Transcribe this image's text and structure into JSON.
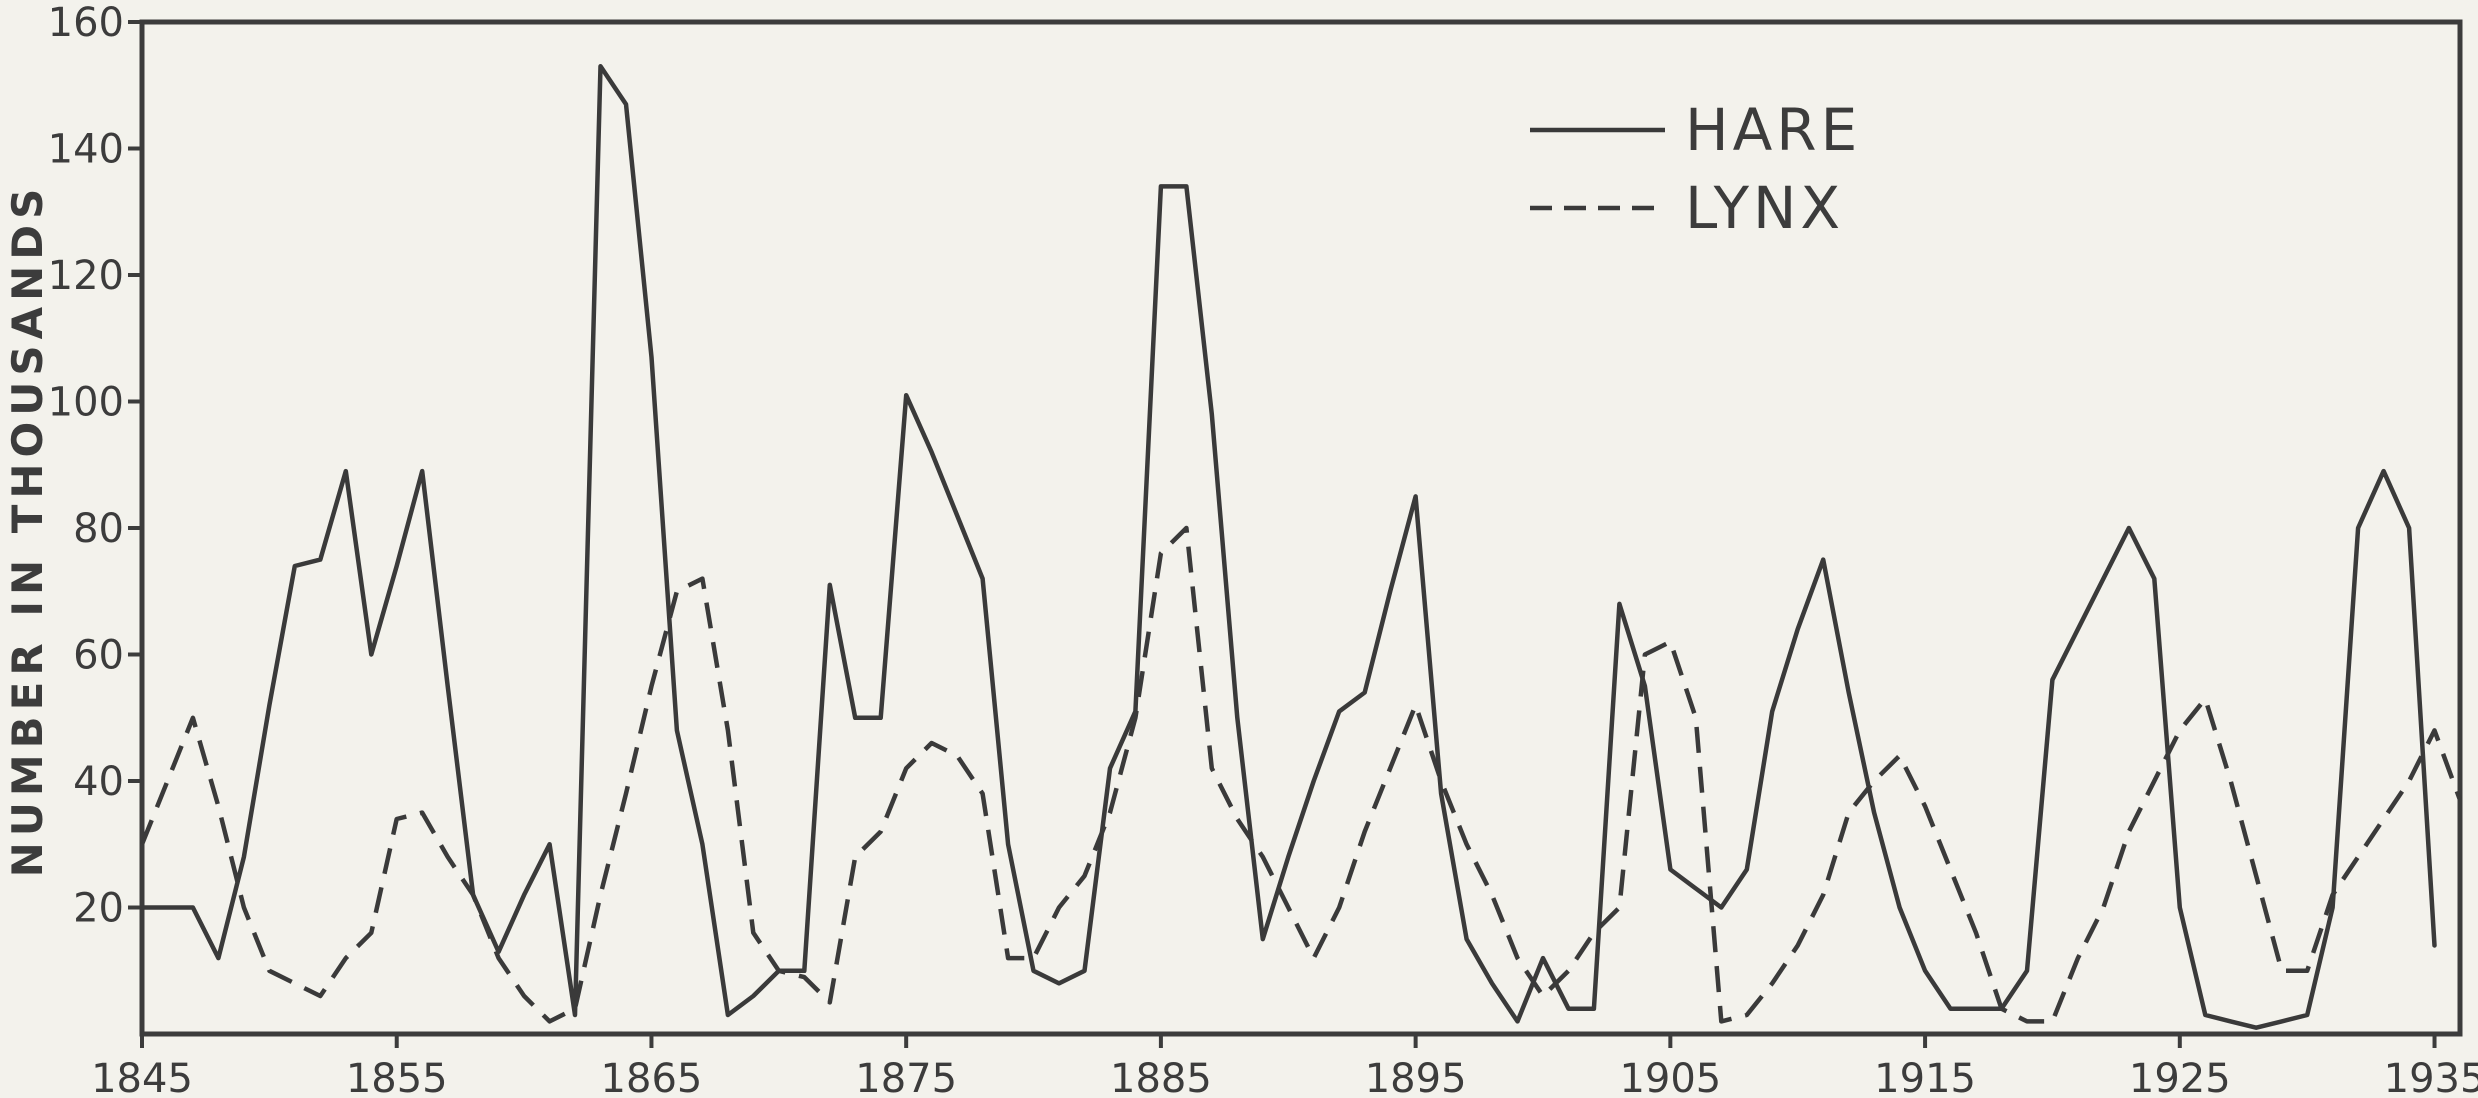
{
  "chart_data": {
    "type": "line",
    "title": "",
    "xlabel": "",
    "ylabel": "NUMBER IN THOUSANDS",
    "xlim": [
      1845,
      1936
    ],
    "ylim": [
      0,
      160
    ],
    "x_ticks": [
      "1845",
      "1855",
      "1865",
      "1875",
      "1885",
      "1895",
      "1905",
      "1915",
      "1925",
      "1935"
    ],
    "y_ticks": [
      "20",
      "40",
      "60",
      "80",
      "100",
      "120",
      "140",
      "160"
    ],
    "grid": false,
    "legend_position": "top-right",
    "line_color": "#3a3a3a",
    "series": [
      {
        "name": "HARE",
        "style": "solid",
        "x": [
          1845,
          1846,
          1847,
          1848,
          1849,
          1850,
          1851,
          1852,
          1853,
          1854,
          1855,
          1856,
          1857,
          1858,
          1859,
          1860,
          1861,
          1862,
          1863,
          1864,
          1865,
          1866,
          1867,
          1868,
          1869,
          1870,
          1871,
          1872,
          1873,
          1874,
          1875,
          1876,
          1877,
          1878,
          1879,
          1880,
          1881,
          1882,
          1883,
          1884,
          1885,
          1886,
          1887,
          1888,
          1889,
          1890,
          1891,
          1892,
          1893,
          1894,
          1895,
          1896,
          1897,
          1898,
          1899,
          1900,
          1901,
          1902,
          1903,
          1904,
          1905,
          1906,
          1907,
          1908,
          1909,
          1910,
          1911,
          1912,
          1913,
          1914,
          1915,
          1916,
          1917,
          1918,
          1919,
          1920,
          1921,
          1922,
          1923,
          1924,
          1925,
          1926,
          1927,
          1928,
          1929,
          1930,
          1931,
          1932,
          1933,
          1934,
          1935
        ],
        "y": [
          20,
          20,
          20,
          12,
          28,
          52,
          74,
          75,
          89,
          60,
          74,
          89,
          55,
          22,
          13,
          22,
          30,
          3,
          153,
          147,
          107,
          48,
          30,
          3,
          6,
          10,
          10,
          71,
          50,
          50,
          101,
          92,
          82,
          72,
          30,
          10,
          8,
          10,
          42,
          51,
          134,
          134,
          98,
          50,
          15,
          28,
          40,
          51,
          54,
          70,
          85,
          38,
          15,
          8,
          2,
          12,
          4,
          4,
          68,
          55,
          26,
          23,
          20,
          26,
          51,
          64,
          75,
          54,
          35,
          20,
          10,
          4,
          4,
          4,
          10,
          56,
          64,
          72,
          80,
          72,
          20,
          3,
          2,
          1,
          2,
          3,
          20,
          80,
          89,
          80,
          14
        ]
      },
      {
        "name": "LYNX",
        "style": "dashed",
        "x": [
          1845,
          1846,
          1847,
          1848,
          1849,
          1850,
          1851,
          1852,
          1853,
          1854,
          1855,
          1856,
          1857,
          1858,
          1859,
          1860,
          1861,
          1862,
          1863,
          1864,
          1865,
          1866,
          1867,
          1868,
          1869,
          1870,
          1871,
          1872,
          1873,
          1874,
          1875,
          1876,
          1877,
          1878,
          1879,
          1880,
          1881,
          1882,
          1883,
          1884,
          1885,
          1886,
          1887,
          1888,
          1889,
          1890,
          1891,
          1892,
          1893,
          1894,
          1895,
          1896,
          1897,
          1898,
          1899,
          1900,
          1901,
          1902,
          1903,
          1904,
          1905,
          1906,
          1907,
          1908,
          1909,
          1910,
          1911,
          1912,
          1913,
          1914,
          1915,
          1916,
          1917,
          1918,
          1919,
          1920,
          1921,
          1922,
          1923,
          1924,
          1925,
          1926,
          1927,
          1928,
          1929,
          1930,
          1931,
          1932,
          1933,
          1934,
          1935,
          1936
        ],
        "y": [
          30,
          40,
          50,
          36,
          20,
          10,
          8,
          6,
          12,
          16,
          34,
          35,
          28,
          22,
          12,
          6,
          2,
          4,
          22,
          38,
          55,
          70,
          72,
          48,
          16,
          10,
          9,
          5,
          28,
          32,
          42,
          46,
          44,
          38,
          12,
          12,
          20,
          25,
          35,
          50,
          76,
          80,
          42,
          34,
          28,
          20,
          12,
          20,
          32,
          42,
          52,
          40,
          30,
          22,
          12,
          6,
          10,
          16,
          20,
          60,
          62,
          50,
          2,
          3,
          8,
          14,
          22,
          35,
          40,
          44,
          36,
          26,
          16,
          4,
          2,
          2,
          12,
          20,
          32,
          40,
          48,
          53,
          40,
          25,
          10,
          10,
          22,
          28,
          34,
          40,
          48,
          37
        ]
      }
    ]
  }
}
